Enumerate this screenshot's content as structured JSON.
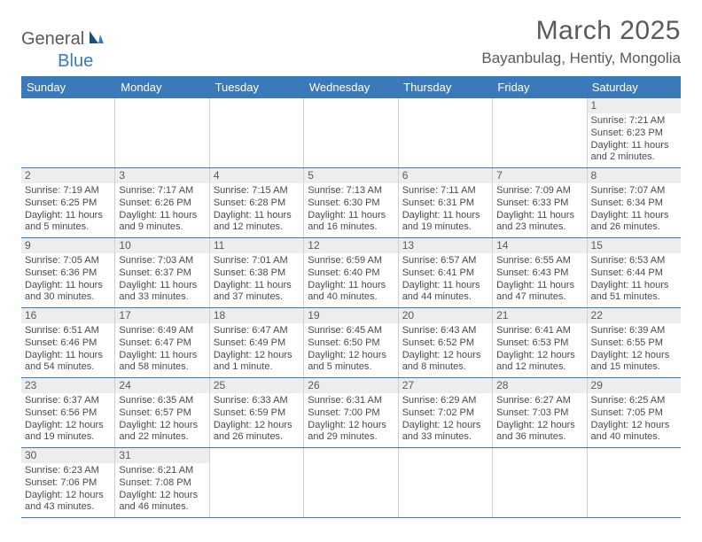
{
  "logo": {
    "part1": "General",
    "part2": "Blue"
  },
  "title": "March 2025",
  "location": "Bayanbulag, Hentiy, Mongolia",
  "colors": {
    "brand_blue": "#3a7ab8",
    "text_gray": "#5a5a5a",
    "cell_text": "#4a4a4a",
    "daynum_bg": "#ededed",
    "cell_border": "#d0d0d0",
    "background": "#ffffff"
  },
  "typography": {
    "title_fontsize": 30,
    "location_fontsize": 17,
    "header_fontsize": 13,
    "cell_fontsize": 11,
    "daynum_fontsize": 12,
    "font_family": "Arial"
  },
  "day_headers": [
    "Sunday",
    "Monday",
    "Tuesday",
    "Wednesday",
    "Thursday",
    "Friday",
    "Saturday"
  ],
  "weeks": [
    [
      {
        "empty": true
      },
      {
        "empty": true
      },
      {
        "empty": true
      },
      {
        "empty": true
      },
      {
        "empty": true
      },
      {
        "empty": true
      },
      {
        "day": "1",
        "sunrise": "Sunrise: 7:21 AM",
        "sunset": "Sunset: 6:23 PM",
        "daylight1": "Daylight: 11 hours",
        "daylight2": "and 2 minutes."
      }
    ],
    [
      {
        "day": "2",
        "sunrise": "Sunrise: 7:19 AM",
        "sunset": "Sunset: 6:25 PM",
        "daylight1": "Daylight: 11 hours",
        "daylight2": "and 5 minutes."
      },
      {
        "day": "3",
        "sunrise": "Sunrise: 7:17 AM",
        "sunset": "Sunset: 6:26 PM",
        "daylight1": "Daylight: 11 hours",
        "daylight2": "and 9 minutes."
      },
      {
        "day": "4",
        "sunrise": "Sunrise: 7:15 AM",
        "sunset": "Sunset: 6:28 PM",
        "daylight1": "Daylight: 11 hours",
        "daylight2": "and 12 minutes."
      },
      {
        "day": "5",
        "sunrise": "Sunrise: 7:13 AM",
        "sunset": "Sunset: 6:30 PM",
        "daylight1": "Daylight: 11 hours",
        "daylight2": "and 16 minutes."
      },
      {
        "day": "6",
        "sunrise": "Sunrise: 7:11 AM",
        "sunset": "Sunset: 6:31 PM",
        "daylight1": "Daylight: 11 hours",
        "daylight2": "and 19 minutes."
      },
      {
        "day": "7",
        "sunrise": "Sunrise: 7:09 AM",
        "sunset": "Sunset: 6:33 PM",
        "daylight1": "Daylight: 11 hours",
        "daylight2": "and 23 minutes."
      },
      {
        "day": "8",
        "sunrise": "Sunrise: 7:07 AM",
        "sunset": "Sunset: 6:34 PM",
        "daylight1": "Daylight: 11 hours",
        "daylight2": "and 26 minutes."
      }
    ],
    [
      {
        "day": "9",
        "sunrise": "Sunrise: 7:05 AM",
        "sunset": "Sunset: 6:36 PM",
        "daylight1": "Daylight: 11 hours",
        "daylight2": "and 30 minutes."
      },
      {
        "day": "10",
        "sunrise": "Sunrise: 7:03 AM",
        "sunset": "Sunset: 6:37 PM",
        "daylight1": "Daylight: 11 hours",
        "daylight2": "and 33 minutes."
      },
      {
        "day": "11",
        "sunrise": "Sunrise: 7:01 AM",
        "sunset": "Sunset: 6:38 PM",
        "daylight1": "Daylight: 11 hours",
        "daylight2": "and 37 minutes."
      },
      {
        "day": "12",
        "sunrise": "Sunrise: 6:59 AM",
        "sunset": "Sunset: 6:40 PM",
        "daylight1": "Daylight: 11 hours",
        "daylight2": "and 40 minutes."
      },
      {
        "day": "13",
        "sunrise": "Sunrise: 6:57 AM",
        "sunset": "Sunset: 6:41 PM",
        "daylight1": "Daylight: 11 hours",
        "daylight2": "and 44 minutes."
      },
      {
        "day": "14",
        "sunrise": "Sunrise: 6:55 AM",
        "sunset": "Sunset: 6:43 PM",
        "daylight1": "Daylight: 11 hours",
        "daylight2": "and 47 minutes."
      },
      {
        "day": "15",
        "sunrise": "Sunrise: 6:53 AM",
        "sunset": "Sunset: 6:44 PM",
        "daylight1": "Daylight: 11 hours",
        "daylight2": "and 51 minutes."
      }
    ],
    [
      {
        "day": "16",
        "sunrise": "Sunrise: 6:51 AM",
        "sunset": "Sunset: 6:46 PM",
        "daylight1": "Daylight: 11 hours",
        "daylight2": "and 54 minutes."
      },
      {
        "day": "17",
        "sunrise": "Sunrise: 6:49 AM",
        "sunset": "Sunset: 6:47 PM",
        "daylight1": "Daylight: 11 hours",
        "daylight2": "and 58 minutes."
      },
      {
        "day": "18",
        "sunrise": "Sunrise: 6:47 AM",
        "sunset": "Sunset: 6:49 PM",
        "daylight1": "Daylight: 12 hours",
        "daylight2": "and 1 minute."
      },
      {
        "day": "19",
        "sunrise": "Sunrise: 6:45 AM",
        "sunset": "Sunset: 6:50 PM",
        "daylight1": "Daylight: 12 hours",
        "daylight2": "and 5 minutes."
      },
      {
        "day": "20",
        "sunrise": "Sunrise: 6:43 AM",
        "sunset": "Sunset: 6:52 PM",
        "daylight1": "Daylight: 12 hours",
        "daylight2": "and 8 minutes."
      },
      {
        "day": "21",
        "sunrise": "Sunrise: 6:41 AM",
        "sunset": "Sunset: 6:53 PM",
        "daylight1": "Daylight: 12 hours",
        "daylight2": "and 12 minutes."
      },
      {
        "day": "22",
        "sunrise": "Sunrise: 6:39 AM",
        "sunset": "Sunset: 6:55 PM",
        "daylight1": "Daylight: 12 hours",
        "daylight2": "and 15 minutes."
      }
    ],
    [
      {
        "day": "23",
        "sunrise": "Sunrise: 6:37 AM",
        "sunset": "Sunset: 6:56 PM",
        "daylight1": "Daylight: 12 hours",
        "daylight2": "and 19 minutes."
      },
      {
        "day": "24",
        "sunrise": "Sunrise: 6:35 AM",
        "sunset": "Sunset: 6:57 PM",
        "daylight1": "Daylight: 12 hours",
        "daylight2": "and 22 minutes."
      },
      {
        "day": "25",
        "sunrise": "Sunrise: 6:33 AM",
        "sunset": "Sunset: 6:59 PM",
        "daylight1": "Daylight: 12 hours",
        "daylight2": "and 26 minutes."
      },
      {
        "day": "26",
        "sunrise": "Sunrise: 6:31 AM",
        "sunset": "Sunset: 7:00 PM",
        "daylight1": "Daylight: 12 hours",
        "daylight2": "and 29 minutes."
      },
      {
        "day": "27",
        "sunrise": "Sunrise: 6:29 AM",
        "sunset": "Sunset: 7:02 PM",
        "daylight1": "Daylight: 12 hours",
        "daylight2": "and 33 minutes."
      },
      {
        "day": "28",
        "sunrise": "Sunrise: 6:27 AM",
        "sunset": "Sunset: 7:03 PM",
        "daylight1": "Daylight: 12 hours",
        "daylight2": "and 36 minutes."
      },
      {
        "day": "29",
        "sunrise": "Sunrise: 6:25 AM",
        "sunset": "Sunset: 7:05 PM",
        "daylight1": "Daylight: 12 hours",
        "daylight2": "and 40 minutes."
      }
    ],
    [
      {
        "day": "30",
        "sunrise": "Sunrise: 6:23 AM",
        "sunset": "Sunset: 7:06 PM",
        "daylight1": "Daylight: 12 hours",
        "daylight2": "and 43 minutes."
      },
      {
        "day": "31",
        "sunrise": "Sunrise: 6:21 AM",
        "sunset": "Sunset: 7:08 PM",
        "daylight1": "Daylight: 12 hours",
        "daylight2": "and 46 minutes."
      },
      {
        "empty": true
      },
      {
        "empty": true
      },
      {
        "empty": true
      },
      {
        "empty": true
      },
      {
        "empty": true
      }
    ]
  ]
}
